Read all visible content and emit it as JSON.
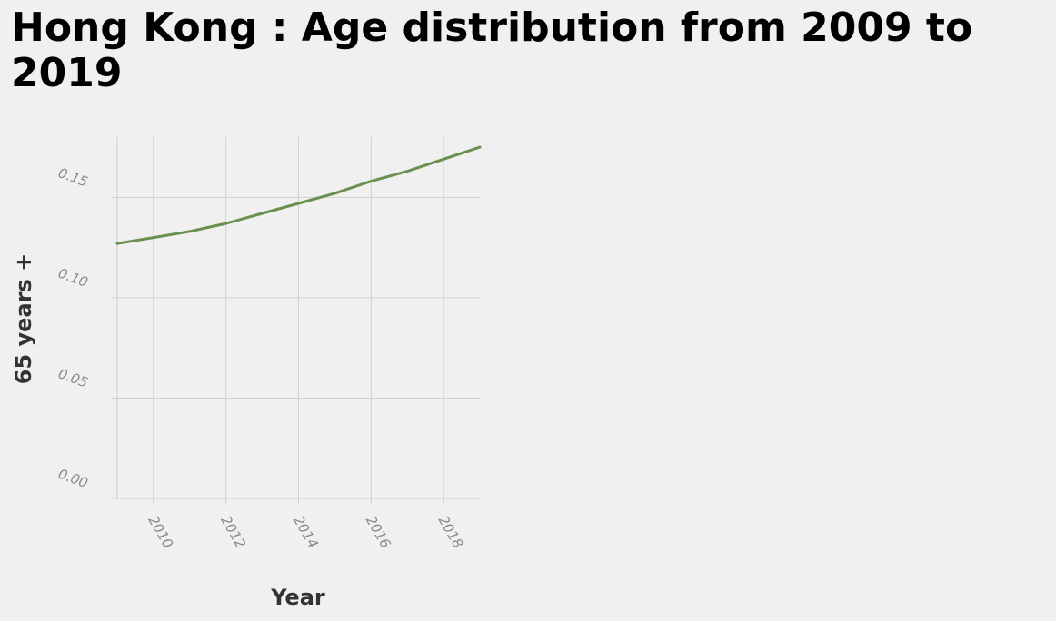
{
  "chart_data": {
    "type": "line",
    "title": "Hong Kong : Age distribution from 2009 to 2019",
    "xlabel": "Year",
    "ylabel": "65 years +",
    "xlim": [
      2009,
      2019
    ],
    "ylim": [
      0,
      0.18
    ],
    "x_ticks": [
      2010,
      2012,
      2014,
      2016,
      2018
    ],
    "x_tick_labels": [
      "2010",
      "2012",
      "2014",
      "2016",
      "2018"
    ],
    "y_ticks": [
      0,
      0.05,
      0.1,
      0.15
    ],
    "y_tick_labels": [
      "0.00",
      "0.05",
      "0.10",
      "0.15"
    ],
    "grid": true,
    "legend": false,
    "series": [
      {
        "color": "#6a8f4e",
        "x": [
          2009,
          2010,
          2011,
          2012,
          2013,
          2014,
          2015,
          2016,
          2017,
          2018,
          2019
        ],
        "y": [
          0.127,
          0.13,
          0.133,
          0.137,
          0.142,
          0.147,
          0.152,
          0.158,
          0.163,
          0.169,
          0.175
        ]
      }
    ],
    "colors": {
      "background": "#f0f0f0",
      "grid": "#d0d0d0",
      "axis": "#cccccc",
      "line": "#6a8f4e"
    }
  }
}
